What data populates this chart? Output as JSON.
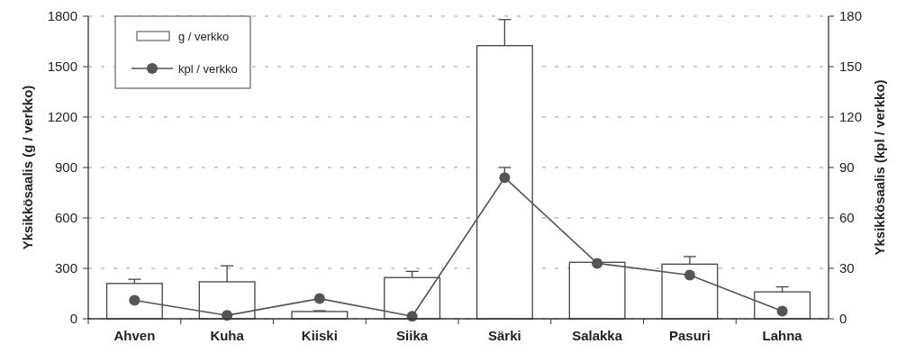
{
  "chart_data": {
    "type": "bar",
    "ylabel": "Yksikkösaalis (g / verkko)",
    "y2label": "Yksikkösaalis (kpl / verkko)",
    "categories": [
      "Ahven",
      "Kuha",
      "Kiiski",
      "Siika",
      "Särki",
      "Salakka",
      "Pasuri",
      "Lahna"
    ],
    "series": [
      {
        "name": "g / verkko",
        "color": "#ffffff",
        "values": [
          210,
          220,
          43,
          245,
          1625,
          336,
          325,
          160
        ],
        "errors": [
          25,
          95,
          5,
          37,
          155,
          null,
          45,
          30
        ]
      },
      {
        "name": "kpl / verkko",
        "type": "line",
        "axis": "y2",
        "color": "#555555",
        "values": [
          11,
          2,
          12,
          1.5,
          84,
          33,
          26,
          4.5
        ],
        "errors": [
          null,
          null,
          null,
          null,
          6,
          null,
          null,
          null
        ]
      }
    ],
    "ylim": [
      0,
      1800
    ],
    "yticks": [
      0,
      300,
      600,
      900,
      1200,
      1500,
      1800
    ],
    "y2lim": [
      0,
      180
    ],
    "y2ticks": [
      0,
      30,
      60,
      90,
      120,
      150,
      180
    ],
    "grid": "y",
    "legend": "top left",
    "marker": "circle",
    "line_style": "solid"
  }
}
